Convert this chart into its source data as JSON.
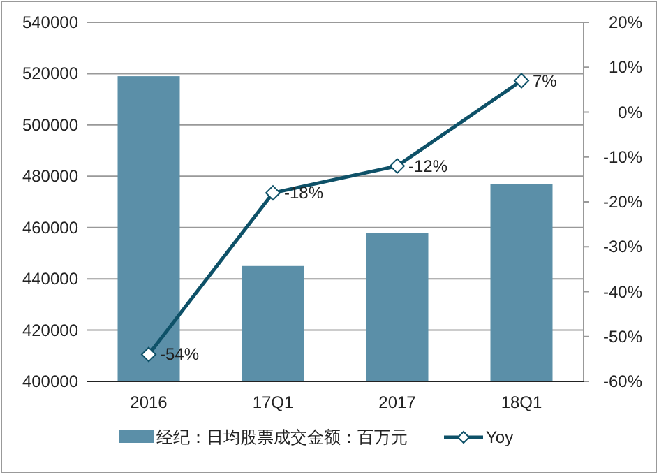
{
  "chart_data": {
    "type": "bar",
    "categories": [
      "2016",
      "17Q1",
      "2017",
      "18Q1"
    ],
    "series": [
      {
        "name": "经纪：日均股票成交金额：百万元",
        "color": "#5b8fa8",
        "values": [
          519000,
          445000,
          458000,
          477000
        ]
      },
      {
        "name": "Yoy",
        "type": "line",
        "axis": "y2",
        "color": "#0e5168",
        "marker": "diamond",
        "values": [
          -54,
          -18,
          -12,
          7
        ],
        "value_labels": [
          "-54%",
          "-18%",
          "-12%",
          "7%"
        ]
      }
    ],
    "ylim": [
      400000,
      540000
    ],
    "yticks": [
      400000,
      420000,
      440000,
      460000,
      480000,
      500000,
      520000,
      540000
    ],
    "y2lim": [
      -60,
      20
    ],
    "y2ticks": [
      {
        "value": -60,
        "label": "-60%"
      },
      {
        "value": -50,
        "label": "-50%"
      },
      {
        "value": -40,
        "label": "-40%"
      },
      {
        "value": -30,
        "label": "-30%"
      },
      {
        "value": -20,
        "label": "-20%"
      },
      {
        "value": -10,
        "label": "-10%"
      },
      {
        "value": 0,
        "label": "0%"
      },
      {
        "value": 10,
        "label": "10%"
      },
      {
        "value": 20,
        "label": "20%"
      }
    ],
    "grid": "y",
    "legend": "bottom"
  }
}
